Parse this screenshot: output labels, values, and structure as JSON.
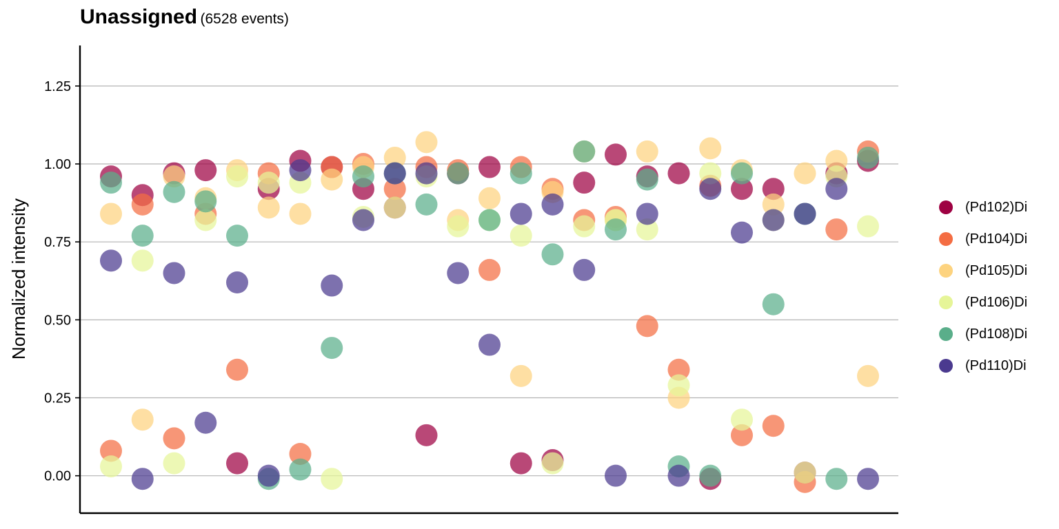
{
  "title": {
    "main": "Unassigned",
    "sub": "(6528 events)"
  },
  "chart_data": {
    "type": "scatter",
    "title": "Unassigned (6528 events)",
    "xlabel": "",
    "ylabel": "Normalized intensity",
    "ylim": [
      -0.12,
      1.38
    ],
    "yticks": [
      "0.00",
      "0.25",
      "0.50",
      "0.75",
      "1.00",
      "1.25"
    ],
    "ytick_values": [
      0,
      0.25,
      0.5,
      0.75,
      1.0,
      1.25
    ],
    "grid": "horizontal",
    "legend_position": "right",
    "x_count": 25,
    "series": [
      {
        "name": "(Pd102)Di",
        "color": "#9E0142",
        "values": [
          0.96,
          0.9,
          0.97,
          0.98,
          0.04,
          0.92,
          1.01,
          0.99,
          0.92,
          0.86,
          0.13,
          0.97,
          0.99,
          0.04,
          0.05,
          0.94,
          1.03,
          0.96,
          0.97,
          -0.01,
          0.92,
          0.92,
          0.01,
          0.97,
          1.01
        ]
      },
      {
        "name": "(Pd104)Di",
        "color": "#F46D43",
        "values": [
          0.08,
          0.87,
          0.12,
          0.84,
          0.34,
          0.97,
          0.07,
          0.99,
          1.0,
          0.92,
          0.99,
          0.98,
          0.66,
          0.99,
          0.92,
          0.82,
          0.83,
          0.48,
          0.34,
          0.93,
          0.13,
          0.16,
          -0.02,
          0.79,
          1.04
        ]
      },
      {
        "name": "(Pd105)Di",
        "color": "#FDD37F",
        "values": [
          0.84,
          0.18,
          0.96,
          0.89,
          0.98,
          0.86,
          0.84,
          0.95,
          0.99,
          1.02,
          1.07,
          0.82,
          0.89,
          0.32,
          0.91,
          1.04,
          0.82,
          1.04,
          0.25,
          1.05,
          0.98,
          0.87,
          0.97,
          1.01,
          0.32
        ]
      },
      {
        "name": "(Pd106)Di",
        "color": "#E6F598",
        "values": [
          0.03,
          0.69,
          0.04,
          0.82,
          0.96,
          0.94,
          0.94,
          -0.01,
          0.83,
          0.86,
          0.96,
          0.8,
          0.82,
          0.77,
          0.04,
          0.8,
          0.82,
          0.79,
          0.29,
          0.97,
          0.18,
          0.82,
          0.01,
          0.96,
          0.8
        ]
      },
      {
        "name": "(Pd108)Di",
        "color": "#5AAE8A",
        "values": [
          0.94,
          0.77,
          0.91,
          0.88,
          0.77,
          -0.01,
          0.02,
          0.41,
          0.96,
          0.97,
          0.87,
          0.97,
          0.82,
          0.97,
          0.71,
          1.04,
          0.79,
          0.95,
          0.03,
          0.0,
          0.97,
          0.55,
          0.84,
          -0.01,
          1.02
        ]
      },
      {
        "name": "(Pd110)Di",
        "color": "#4B3A8F",
        "values": [
          0.69,
          -0.01,
          0.65,
          0.17,
          0.62,
          0.0,
          0.98,
          0.61,
          0.82,
          0.97,
          0.97,
          0.65,
          0.42,
          0.84,
          0.87,
          0.66,
          0.0,
          0.84,
          0.0,
          0.92,
          0.78,
          0.82,
          0.84,
          0.92,
          -0.01
        ]
      }
    ]
  }
}
